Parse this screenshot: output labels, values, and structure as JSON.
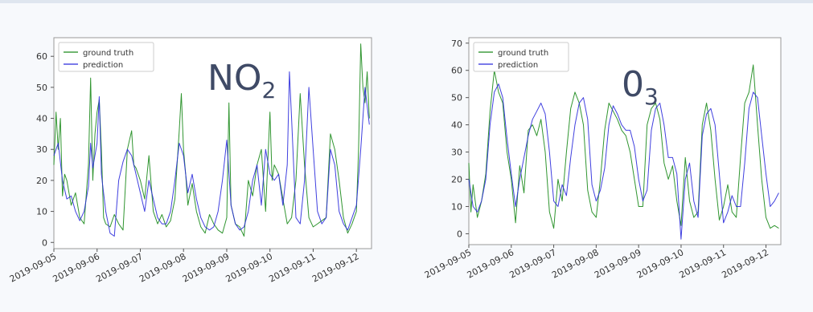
{
  "chart_data": [
    {
      "type": "line",
      "title": "NO",
      "title_subscript": "2",
      "xlabel": "",
      "ylabel": "",
      "ylim": [
        -2,
        66
      ],
      "yticks": [
        0,
        10,
        20,
        30,
        40,
        50,
        60
      ],
      "xlim": [
        0,
        7.35
      ],
      "xticks": [
        0,
        1,
        2,
        3,
        4,
        5,
        6,
        7
      ],
      "xtick_labels": [
        "2019-09-05",
        "2019-09-06",
        "2019-09-07",
        "2019-09-08",
        "2019-09-09",
        "2019-09-10",
        "2019-09-11",
        "2019-09-12"
      ],
      "grid": false,
      "legend": "top-left",
      "series": [
        {
          "name": "ground truth",
          "color": "#1a8a1a",
          "x": [
            0,
            0.05,
            0.1,
            0.15,
            0.2,
            0.25,
            0.3,
            0.4,
            0.5,
            0.6,
            0.7,
            0.8,
            0.85,
            0.9,
            0.95,
            1.0,
            1.05,
            1.1,
            1.15,
            1.2,
            1.3,
            1.4,
            1.5,
            1.6,
            1.7,
            1.8,
            1.85,
            1.9,
            2.0,
            2.1,
            2.2,
            2.3,
            2.4,
            2.5,
            2.6,
            2.7,
            2.8,
            2.9,
            2.95,
            3.0,
            3.05,
            3.1,
            3.2,
            3.3,
            3.4,
            3.5,
            3.6,
            3.7,
            3.8,
            3.9,
            4.0,
            4.05,
            4.1,
            4.2,
            4.3,
            4.4,
            4.5,
            4.6,
            4.7,
            4.8,
            4.9,
            5.0,
            5.05,
            5.1,
            5.2,
            5.3,
            5.4,
            5.5,
            5.6,
            5.7,
            5.8,
            5.9,
            6.0,
            6.1,
            6.2,
            6.3,
            6.4,
            6.5,
            6.6,
            6.7,
            6.8,
            6.9,
            7.0,
            7.05,
            7.1,
            7.15,
            7.2,
            7.25,
            7.3
          ],
          "y": [
            25,
            42,
            30,
            40,
            15,
            22,
            20,
            12,
            16,
            8,
            6,
            25,
            53,
            20,
            35,
            42,
            46,
            30,
            8,
            6,
            5,
            9,
            6,
            4,
            30,
            36,
            25,
            24,
            20,
            14,
            28,
            10,
            6,
            9,
            5,
            7,
            14,
            36,
            48,
            30,
            22,
            12,
            19,
            10,
            5,
            3,
            9,
            6,
            4,
            3,
            8,
            45,
            12,
            6,
            5,
            2,
            20,
            15,
            25,
            30,
            10,
            42,
            20,
            25,
            22,
            14,
            6,
            8,
            20,
            48,
            25,
            8,
            5,
            6,
            7,
            8,
            35,
            30,
            20,
            8,
            3,
            6,
            10,
            30,
            64,
            50,
            45,
            55,
            40
          ]
        },
        {
          "name": "prediction",
          "color": "#2b2bdc",
          "x": [
            0,
            0.1,
            0.2,
            0.3,
            0.4,
            0.5,
            0.6,
            0.7,
            0.8,
            0.85,
            0.9,
            1.0,
            1.05,
            1.1,
            1.2,
            1.3,
            1.4,
            1.5,
            1.6,
            1.7,
            1.8,
            1.9,
            2.0,
            2.1,
            2.2,
            2.3,
            2.4,
            2.5,
            2.6,
            2.7,
            2.8,
            2.9,
            3.0,
            3.1,
            3.2,
            3.3,
            3.4,
            3.5,
            3.6,
            3.7,
            3.8,
            3.9,
            4.0,
            4.1,
            4.2,
            4.3,
            4.4,
            4.5,
            4.6,
            4.7,
            4.8,
            4.9,
            5.0,
            5.1,
            5.2,
            5.3,
            5.4,
            5.45,
            5.5,
            5.6,
            5.7,
            5.8,
            5.9,
            6.0,
            6.1,
            6.2,
            6.3,
            6.4,
            6.5,
            6.6,
            6.7,
            6.8,
            6.9,
            7.0,
            7.1,
            7.2,
            7.3
          ],
          "y": [
            28,
            32,
            20,
            14,
            15,
            10,
            7,
            10,
            18,
            32,
            24,
            32,
            47,
            22,
            10,
            3,
            2,
            20,
            26,
            30,
            28,
            22,
            16,
            10,
            20,
            14,
            8,
            6,
            6,
            10,
            20,
            32,
            28,
            16,
            22,
            14,
            8,
            5,
            4,
            5,
            10,
            20,
            33,
            12,
            6,
            4,
            5,
            10,
            20,
            25,
            12,
            30,
            22,
            20,
            22,
            12,
            25,
            55,
            40,
            8,
            6,
            20,
            50,
            30,
            10,
            6,
            8,
            30,
            25,
            10,
            6,
            4,
            8,
            12,
            30,
            50,
            38
          ]
        }
      ]
    },
    {
      "type": "line",
      "title": "0",
      "title_subscript": "3",
      "xlabel": "",
      "ylabel": "",
      "ylim": [
        -4,
        72
      ],
      "yticks": [
        0,
        10,
        20,
        30,
        40,
        50,
        60,
        70
      ],
      "xlim": [
        0,
        7.35
      ],
      "xticks": [
        0,
        1,
        2,
        3,
        4,
        5,
        6,
        7
      ],
      "xtick_labels": [
        "2019-09-05",
        "2019-09-06",
        "2019-09-07",
        "2019-09-08",
        "2019-09-09",
        "2019-09-10",
        "2019-09-11",
        "2019-09-12"
      ],
      "grid": false,
      "legend": "top-left",
      "series": [
        {
          "name": "ground truth",
          "color": "#1a8a1a",
          "x": [
            0,
            0.05,
            0.1,
            0.2,
            0.3,
            0.4,
            0.5,
            0.6,
            0.7,
            0.8,
            0.9,
            1.0,
            1.1,
            1.2,
            1.3,
            1.4,
            1.5,
            1.6,
            1.7,
            1.8,
            1.9,
            2.0,
            2.1,
            2.2,
            2.3,
            2.4,
            2.5,
            2.6,
            2.7,
            2.8,
            2.9,
            3.0,
            3.1,
            3.2,
            3.3,
            3.4,
            3.5,
            3.6,
            3.7,
            3.8,
            3.9,
            4.0,
            4.1,
            4.2,
            4.3,
            4.4,
            4.5,
            4.6,
            4.7,
            4.8,
            4.9,
            5.0,
            5.1,
            5.2,
            5.3,
            5.4,
            5.5,
            5.6,
            5.7,
            5.8,
            5.9,
            6.0,
            6.1,
            6.2,
            6.3,
            6.4,
            6.5,
            6.6,
            6.7,
            6.8,
            6.9,
            7.0,
            7.1,
            7.2,
            7.3
          ],
          "y": [
            26,
            8,
            18,
            6,
            12,
            22,
            45,
            60,
            52,
            48,
            30,
            20,
            4,
            25,
            15,
            38,
            40,
            36,
            42,
            30,
            8,
            2,
            20,
            12,
            30,
            46,
            52,
            48,
            40,
            16,
            8,
            6,
            20,
            38,
            48,
            45,
            42,
            38,
            36,
            30,
            20,
            10,
            10,
            40,
            46,
            48,
            42,
            26,
            20,
            25,
            12,
            3,
            28,
            12,
            6,
            8,
            40,
            48,
            38,
            20,
            5,
            10,
            18,
            8,
            6,
            28,
            48,
            52,
            62,
            40,
            20,
            6,
            2,
            3,
            2
          ]
        },
        {
          "name": "prediction",
          "color": "#2b2bdc",
          "x": [
            0,
            0.1,
            0.2,
            0.3,
            0.4,
            0.5,
            0.6,
            0.7,
            0.8,
            0.9,
            1.0,
            1.1,
            1.2,
            1.3,
            1.4,
            1.5,
            1.6,
            1.7,
            1.8,
            1.9,
            2.0,
            2.1,
            2.2,
            2.3,
            2.4,
            2.5,
            2.6,
            2.7,
            2.8,
            2.9,
            3.0,
            3.1,
            3.2,
            3.3,
            3.4,
            3.5,
            3.6,
            3.7,
            3.8,
            3.9,
            4.0,
            4.1,
            4.2,
            4.3,
            4.4,
            4.5,
            4.6,
            4.7,
            4.8,
            4.9,
            5.0,
            5.1,
            5.2,
            5.3,
            5.4,
            5.5,
            5.6,
            5.7,
            5.8,
            5.9,
            6.0,
            6.1,
            6.2,
            6.3,
            6.4,
            6.5,
            6.6,
            6.7,
            6.8,
            6.9,
            7.0,
            7.1,
            7.2,
            7.3
          ],
          "y": [
            20,
            10,
            8,
            12,
            20,
            40,
            52,
            55,
            50,
            35,
            22,
            10,
            20,
            28,
            36,
            42,
            45,
            48,
            44,
            30,
            12,
            10,
            18,
            14,
            28,
            40,
            48,
            50,
            42,
            18,
            12,
            16,
            24,
            40,
            47,
            44,
            40,
            38,
            38,
            32,
            20,
            12,
            16,
            38,
            46,
            48,
            40,
            28,
            28,
            22,
            -2,
            20,
            26,
            12,
            6,
            36,
            44,
            46,
            40,
            22,
            4,
            8,
            14,
            10,
            10,
            26,
            46,
            52,
            50,
            36,
            22,
            10,
            12,
            15
          ]
        }
      ]
    }
  ]
}
